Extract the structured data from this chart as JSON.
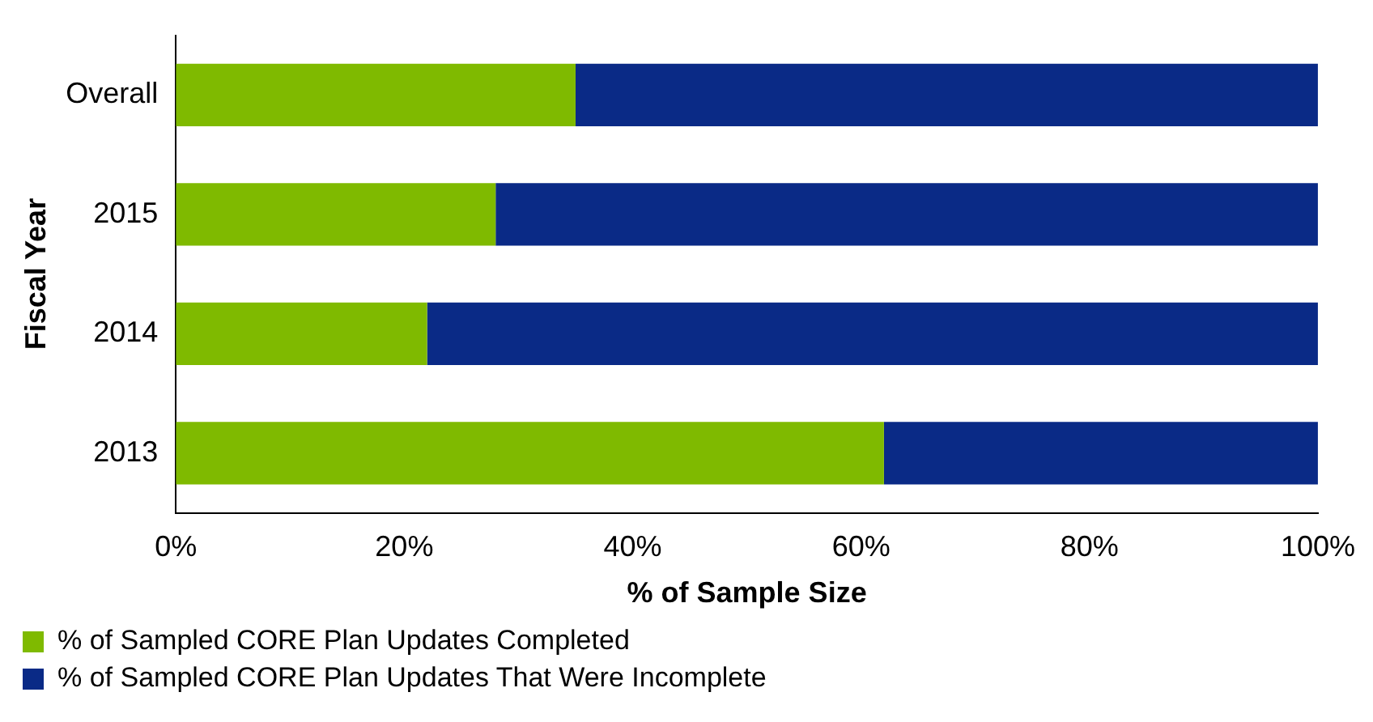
{
  "chart_data": {
    "type": "bar",
    "orientation": "horizontal",
    "stacked": true,
    "xlabel": "% of Sample Size",
    "ylabel": "Fiscal Year",
    "categories": [
      "Overall",
      "2015",
      "2014",
      "2013"
    ],
    "series": [
      {
        "name": "% of Sampled CORE Plan Updates Completed",
        "color": "#7fba00",
        "values": [
          35,
          28,
          22,
          62
        ]
      },
      {
        "name": "% of Sampled CORE Plan Updates That Were Incomplete",
        "color": "#0a2a86",
        "values": [
          65,
          72,
          78,
          38
        ]
      }
    ],
    "xlim": [
      0,
      100
    ],
    "xticks": [
      {
        "value": 0,
        "label": "0%"
      },
      {
        "value": 20,
        "label": "20%"
      },
      {
        "value": 40,
        "label": "40%"
      },
      {
        "value": 60,
        "label": "60%"
      },
      {
        "value": 80,
        "label": "80%"
      },
      {
        "value": 100,
        "label": "100%"
      }
    ],
    "grid": false,
    "legend": "bottom left"
  }
}
